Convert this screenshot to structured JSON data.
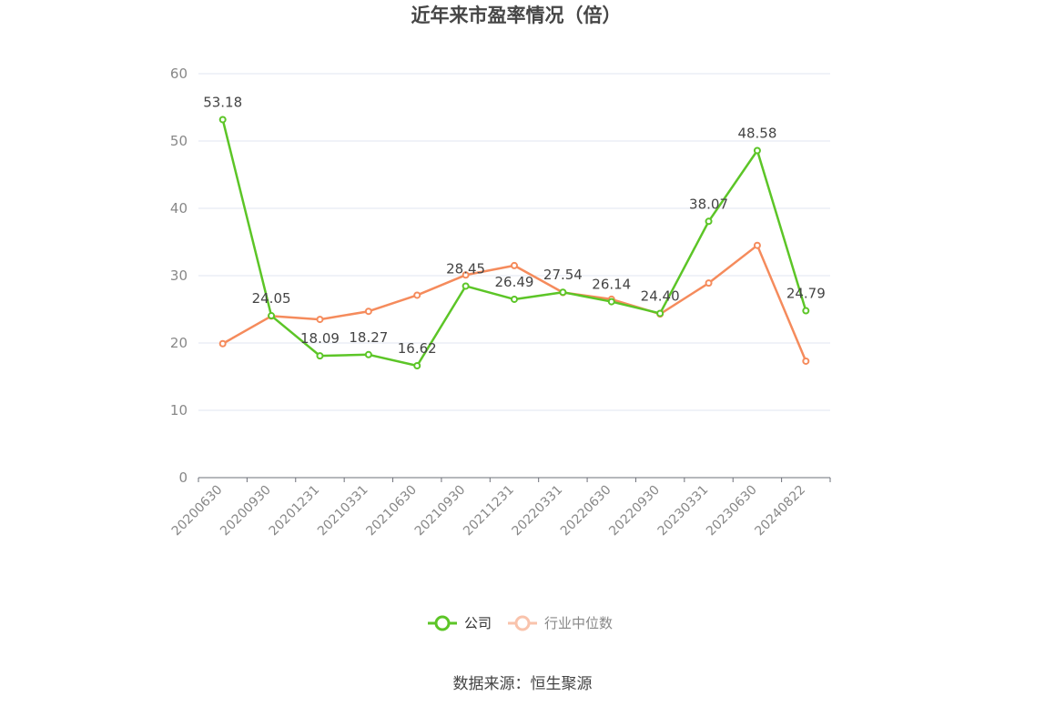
{
  "chart_data": {
    "type": "line",
    "title": "近年来市盈率情况（倍）",
    "categories": [
      "20200630",
      "20200930",
      "20201231",
      "20210331",
      "20210630",
      "20210930",
      "20211231",
      "20220331",
      "20220630",
      "20220930",
      "20230331",
      "20230630",
      "20240822"
    ],
    "series": [
      {
        "name": "公司",
        "color": "#5cc527",
        "values": [
          53.18,
          24.05,
          18.09,
          18.27,
          16.62,
          28.45,
          26.49,
          27.54,
          26.14,
          24.4,
          38.07,
          48.58,
          24.79
        ],
        "labels": [
          "53.18",
          "24.05",
          "18.09",
          "18.27",
          "16.62",
          "28.45",
          "26.49",
          "27.54",
          "26.14",
          "24.40",
          "38.07",
          "48.58",
          "24.79"
        ]
      },
      {
        "name": "行业中位数",
        "color": "#f58b5c",
        "values": [
          19.9,
          24.0,
          23.5,
          24.7,
          27.1,
          30.1,
          31.5,
          27.5,
          26.5,
          24.3,
          28.9,
          34.5,
          17.3
        ]
      }
    ],
    "ylim": [
      0,
      60
    ],
    "yticks": [
      "0",
      "10",
      "20",
      "30",
      "40",
      "50",
      "60"
    ],
    "grid": true,
    "legend_position": "bottom-center",
    "xlabel": "",
    "ylabel": ""
  },
  "source": "数据来源：恒生聚源"
}
